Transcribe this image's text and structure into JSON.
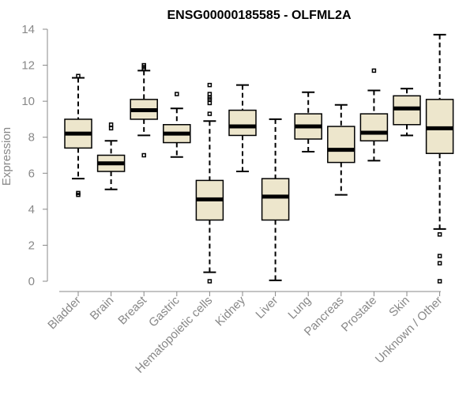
{
  "chart_data": {
    "type": "boxplot",
    "title": "ENSG00000185585 - OLFML2A",
    "xlabel": "",
    "ylabel": "Expression",
    "ylim": [
      0,
      14
    ],
    "yticks": [
      0,
      2,
      4,
      6,
      8,
      10,
      12,
      14
    ],
    "box_color": "#ede6cc",
    "categories": [
      "Bladder",
      "Brain",
      "Breast",
      "Gastric",
      "Hematopoietic cells",
      "Kidney",
      "Liver",
      "Lung",
      "Pancreas",
      "Prostate",
      "Skin",
      "Unknown / Other"
    ],
    "boxes": [
      {
        "name": "Bladder",
        "whisker_low": 5.7,
        "q1": 7.4,
        "median": 8.2,
        "q3": 9.0,
        "whisker_high": 11.3,
        "outliers": [
          4.8,
          4.9,
          11.4
        ]
      },
      {
        "name": "Brain",
        "whisker_low": 5.1,
        "q1": 6.1,
        "median": 6.55,
        "q3": 7.0,
        "whisker_high": 7.8,
        "outliers": [
          8.5,
          8.7
        ]
      },
      {
        "name": "Breast",
        "whisker_low": 8.1,
        "q1": 9.0,
        "median": 9.5,
        "q3": 10.1,
        "whisker_high": 11.7,
        "outliers": [
          7.0,
          11.8,
          11.9,
          12.0
        ]
      },
      {
        "name": "Gastric",
        "whisker_low": 6.9,
        "q1": 7.7,
        "median": 8.2,
        "q3": 8.7,
        "whisker_high": 9.6,
        "outliers": [
          10.4
        ]
      },
      {
        "name": "Hematopoietic cells",
        "whisker_low": 0.5,
        "q1": 3.4,
        "median": 4.55,
        "q3": 5.6,
        "whisker_high": 8.9,
        "outliers": [
          0.0,
          9.3,
          9.9,
          10.1,
          10.2,
          10.4,
          10.9
        ]
      },
      {
        "name": "Kidney",
        "whisker_low": 6.1,
        "q1": 8.1,
        "median": 8.6,
        "q3": 9.5,
        "whisker_high": 10.9,
        "outliers": []
      },
      {
        "name": "Liver",
        "whisker_low": 0.05,
        "q1": 3.4,
        "median": 4.7,
        "q3": 5.7,
        "whisker_high": 9.0,
        "outliers": []
      },
      {
        "name": "Lung",
        "whisker_low": 7.2,
        "q1": 7.9,
        "median": 8.6,
        "q3": 9.3,
        "whisker_high": 10.5,
        "outliers": []
      },
      {
        "name": "Pancreas",
        "whisker_low": 4.8,
        "q1": 6.6,
        "median": 7.3,
        "q3": 8.6,
        "whisker_high": 9.8,
        "outliers": []
      },
      {
        "name": "Prostate",
        "whisker_low": 6.7,
        "q1": 7.8,
        "median": 8.25,
        "q3": 9.3,
        "whisker_high": 10.6,
        "outliers": [
          11.7
        ]
      },
      {
        "name": "Skin",
        "whisker_low": 8.1,
        "q1": 8.7,
        "median": 9.6,
        "q3": 10.3,
        "whisker_high": 10.7,
        "outliers": []
      },
      {
        "name": "Unknown / Other",
        "whisker_low": 2.9,
        "q1": 7.1,
        "median": 8.5,
        "q3": 10.1,
        "whisker_high": 13.7,
        "outliers": [
          0.0,
          1.0,
          1.4,
          2.6
        ]
      }
    ]
  }
}
